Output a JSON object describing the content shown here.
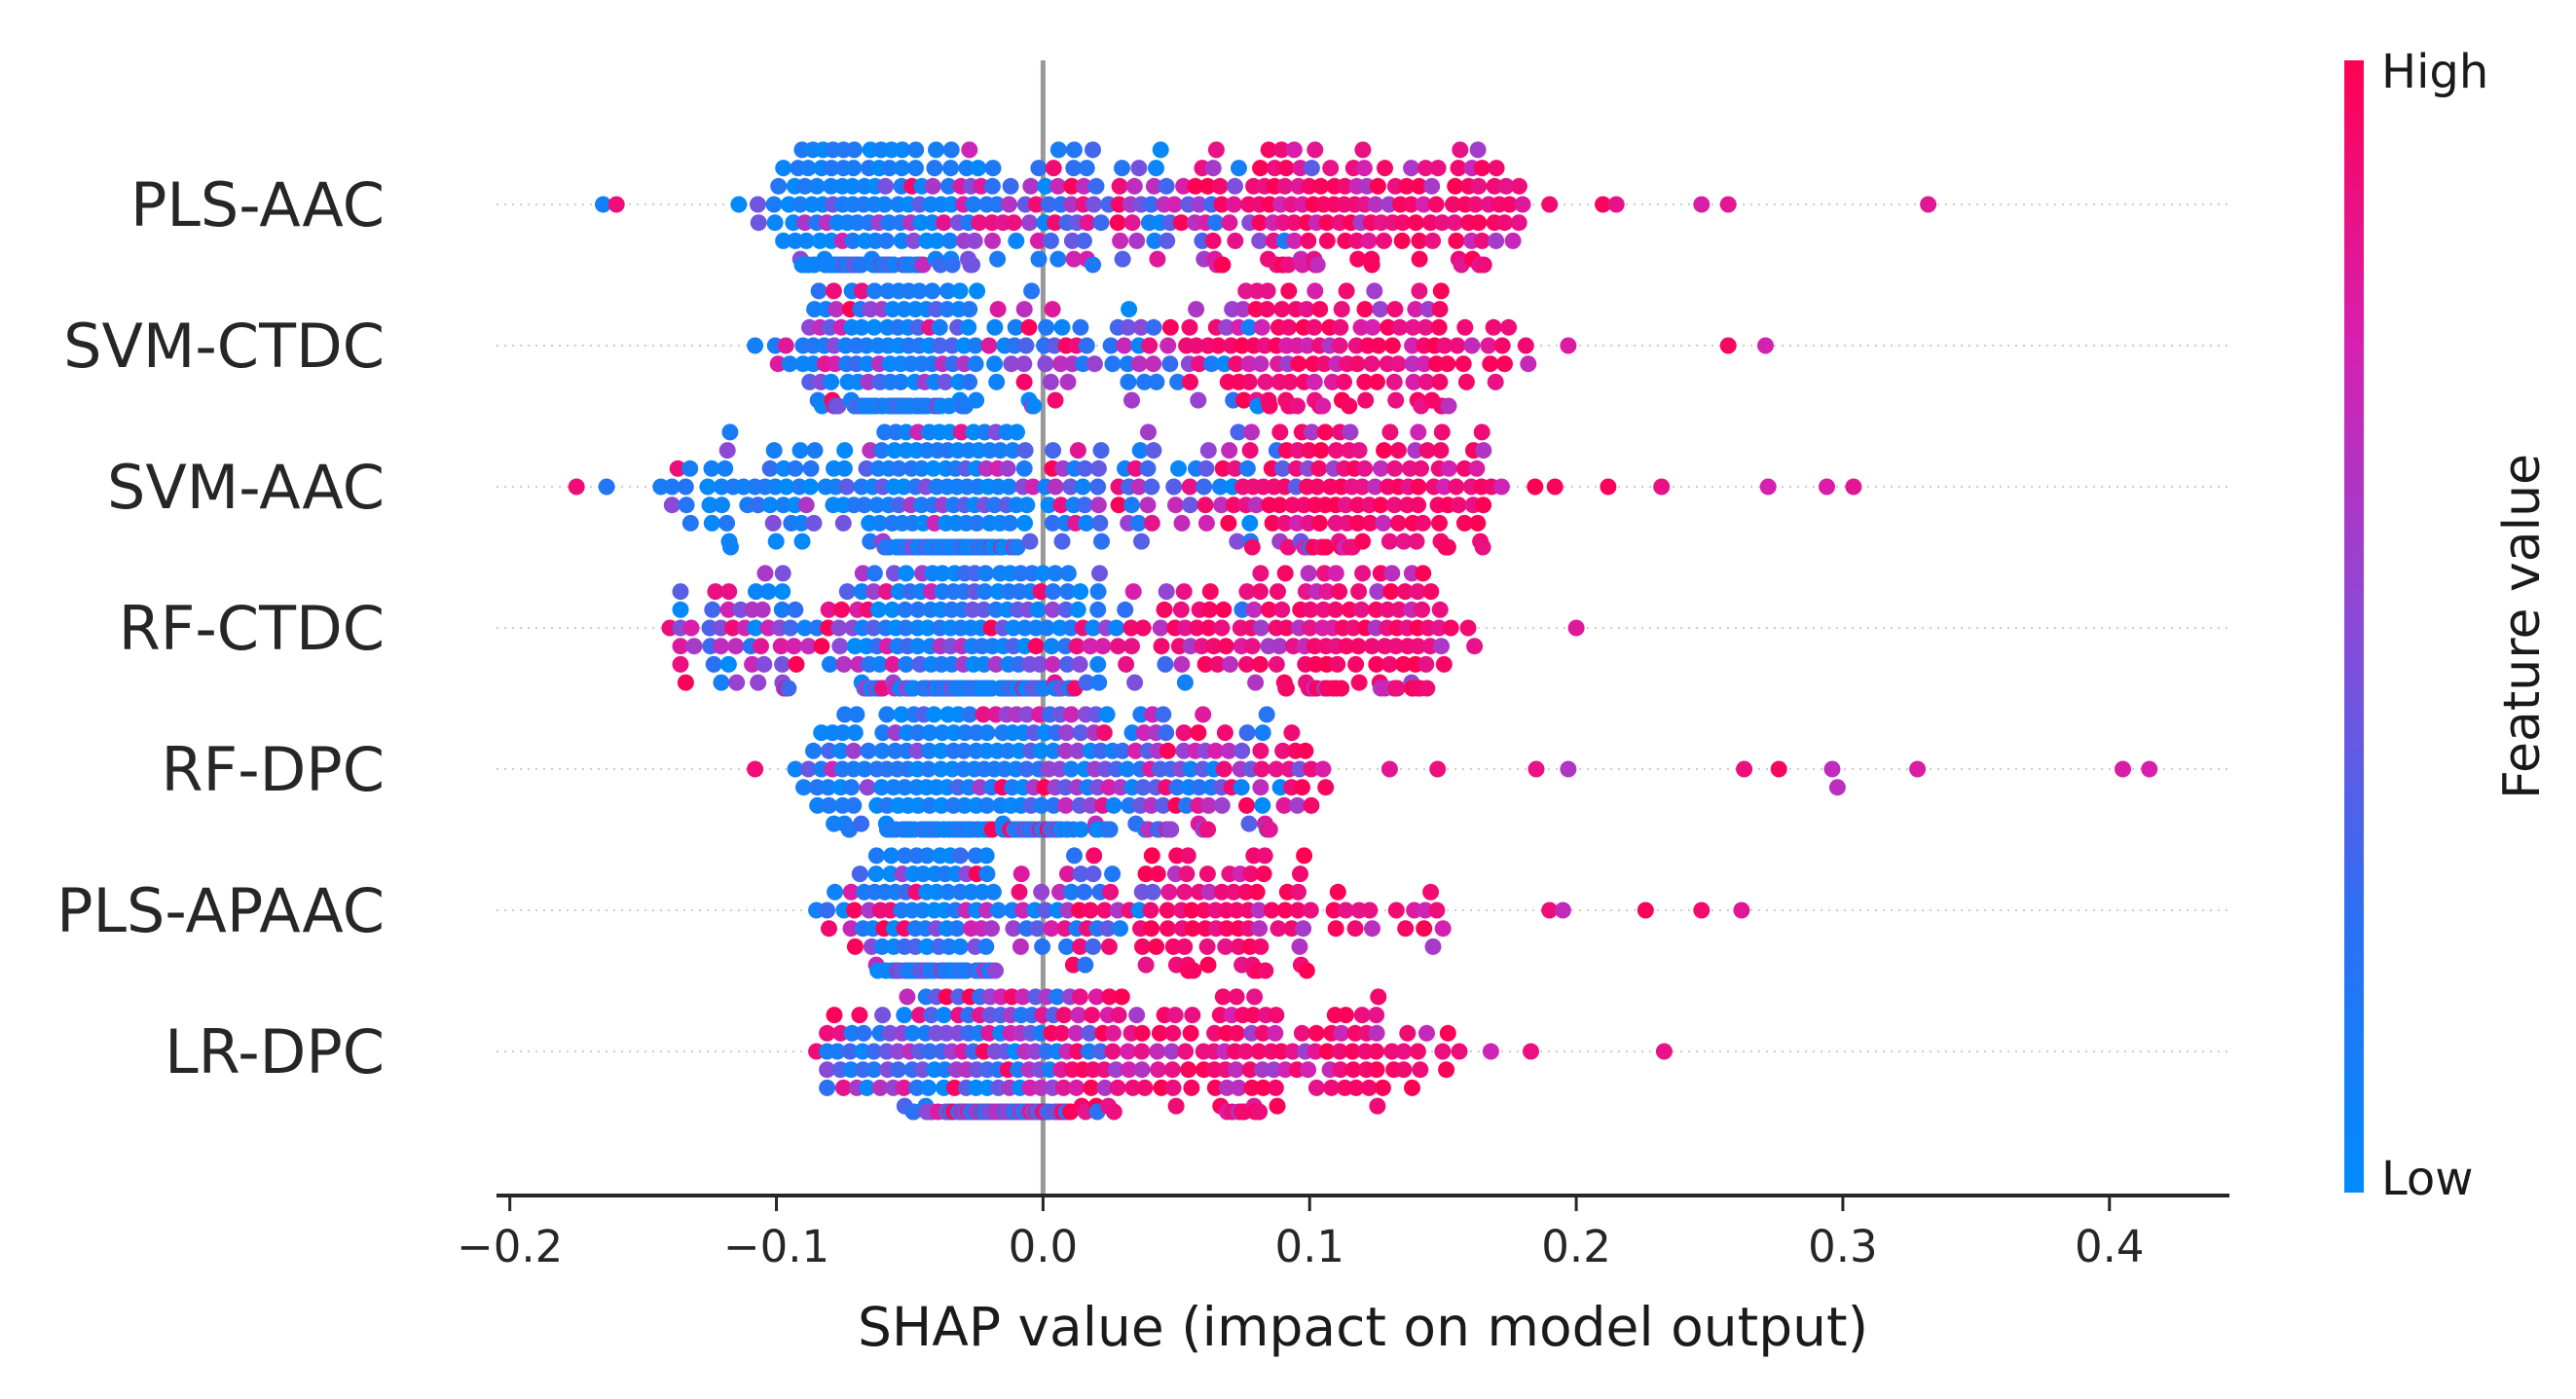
{
  "chart_data": {
    "type": "scatter",
    "subtype": "shap-beeswarm",
    "title": "",
    "xlabel": "SHAP value (impact on model output)",
    "ylabel": "",
    "xlim": [
      -0.205,
      0.445
    ],
    "xticks": [
      -0.2,
      -0.1,
      0.0,
      0.1,
      0.2,
      0.3,
      0.4
    ],
    "xtick_labels": [
      "−0.2",
      "−0.1",
      "0.0",
      "0.1",
      "0.2",
      "0.3",
      "0.4"
    ],
    "zero_line": 0.0,
    "features": [
      {
        "name": "PLS-AAC",
        "min": -0.165,
        "max": 0.332,
        "bulk_center": -0.068,
        "outliers": [
          -0.165,
          -0.16,
          0.19,
          0.21,
          0.215,
          0.247,
          0.257,
          0.332
        ],
        "clusters": [
          {
            "center": -0.068,
            "n": 170,
            "spread": 0.02,
            "color": "low"
          },
          {
            "center": -0.02,
            "n": 70,
            "spread": 0.03,
            "color": "mix"
          },
          {
            "center": 0.04,
            "n": 60,
            "spread": 0.03,
            "color": "mix"
          },
          {
            "center": 0.11,
            "n": 110,
            "spread": 0.03,
            "color": "high"
          },
          {
            "center": 0.155,
            "n": 30,
            "spread": 0.015,
            "color": "high"
          }
        ]
      },
      {
        "name": "SVM-CTDC",
        "min": -0.108,
        "max": 0.271,
        "bulk_center": -0.055,
        "outliers": [
          -0.108,
          -0.095,
          0.182,
          0.197,
          0.257,
          0.271
        ],
        "clusters": [
          {
            "center": -0.055,
            "n": 160,
            "spread": 0.015,
            "color": "low"
          },
          {
            "center": -0.08,
            "n": 30,
            "spread": 0.012,
            "color": "mix"
          },
          {
            "center": 0.0,
            "n": 45,
            "spread": 0.025,
            "color": "mix"
          },
          {
            "center": 0.06,
            "n": 35,
            "spread": 0.02,
            "color": "mix"
          },
          {
            "center": 0.105,
            "n": 100,
            "spread": 0.025,
            "color": "high"
          },
          {
            "center": 0.155,
            "n": 30,
            "spread": 0.012,
            "color": "high"
          }
        ]
      },
      {
        "name": "SVM-AAC",
        "min": -0.175,
        "max": 0.304,
        "bulk_center": -0.035,
        "outliers": [
          -0.175,
          -0.137,
          0.172,
          0.192,
          0.212,
          0.232,
          0.272,
          0.294,
          0.304
        ],
        "clusters": [
          {
            "center": -0.035,
            "n": 170,
            "spread": 0.015,
            "color": "low"
          },
          {
            "center": -0.1,
            "n": 65,
            "spread": 0.025,
            "color": "low"
          },
          {
            "center": 0.0,
            "n": 40,
            "spread": 0.02,
            "color": "mix"
          },
          {
            "center": 0.06,
            "n": 50,
            "spread": 0.025,
            "color": "mix"
          },
          {
            "center": 0.115,
            "n": 110,
            "spread": 0.025,
            "color": "high"
          },
          {
            "center": 0.155,
            "n": 20,
            "spread": 0.012,
            "color": "high"
          }
        ]
      },
      {
        "name": "RF-CTDC",
        "min": -0.14,
        "max": 0.2,
        "bulk_center": -0.025,
        "outliers": [
          -0.14,
          0.2
        ],
        "clusters": [
          {
            "center": -0.025,
            "n": 240,
            "spread": 0.02,
            "color": "low"
          },
          {
            "center": -0.115,
            "n": 45,
            "spread": 0.015,
            "color": "mix"
          },
          {
            "center": -0.07,
            "n": 50,
            "spread": 0.015,
            "color": "mix"
          },
          {
            "center": 0.02,
            "n": 50,
            "spread": 0.02,
            "color": "mix"
          },
          {
            "center": 0.1,
            "n": 110,
            "spread": 0.025,
            "color": "high"
          },
          {
            "center": 0.14,
            "n": 30,
            "spread": 0.008,
            "color": "high"
          }
        ]
      },
      {
        "name": "RF-DPC",
        "min": -0.108,
        "max": 0.415,
        "bulk_center": -0.035,
        "outliers": [
          -0.108,
          0.105,
          0.13,
          0.148,
          0.185,
          0.197,
          0.263,
          0.276,
          0.296,
          0.298,
          0.328,
          0.405,
          0.415
        ],
        "clusters": [
          {
            "center": -0.035,
            "n": 230,
            "spread": 0.025,
            "color": "low"
          },
          {
            "center": 0.015,
            "n": 80,
            "spread": 0.02,
            "color": "mix"
          },
          {
            "center": 0.055,
            "n": 70,
            "spread": 0.02,
            "color": "mix"
          },
          {
            "center": 0.085,
            "n": 20,
            "spread": 0.012,
            "color": "high"
          }
        ]
      },
      {
        "name": "PLS-APAAC",
        "min": -0.085,
        "max": 0.262,
        "bulk_center": -0.04,
        "outliers": [
          -0.085,
          0.15,
          0.19,
          0.195,
          0.226,
          0.247,
          0.262
        ],
        "clusters": [
          {
            "center": -0.04,
            "n": 120,
            "spread": 0.012,
            "color": "low"
          },
          {
            "center": -0.065,
            "n": 25,
            "spread": 0.012,
            "color": "mix"
          },
          {
            "center": 0.0,
            "n": 50,
            "spread": 0.025,
            "color": "mix"
          },
          {
            "center": 0.045,
            "n": 45,
            "spread": 0.02,
            "color": "high"
          },
          {
            "center": 0.075,
            "n": 40,
            "spread": 0.015,
            "color": "high"
          },
          {
            "center": 0.12,
            "n": 20,
            "spread": 0.02,
            "color": "high"
          }
        ]
      },
      {
        "name": "LR-DPC",
        "min": -0.085,
        "max": 0.233,
        "bulk_center": -0.018,
        "outliers": [
          -0.085,
          0.168,
          0.183,
          0.233
        ],
        "clusters": [
          {
            "center": -0.018,
            "n": 240,
            "spread": 0.017,
            "color": "mix"
          },
          {
            "center": -0.06,
            "n": 40,
            "spread": 0.015,
            "color": "mix"
          },
          {
            "center": 0.03,
            "n": 55,
            "spread": 0.02,
            "color": "high"
          },
          {
            "center": 0.08,
            "n": 70,
            "spread": 0.022,
            "color": "high"
          },
          {
            "center": 0.125,
            "n": 35,
            "spread": 0.015,
            "color": "high"
          }
        ]
      }
    ],
    "colorbar": {
      "title": "Feature value",
      "high_label": "High",
      "low_label": "Low",
      "low_color": "#008bfb",
      "high_color": "#ff0052"
    }
  }
}
